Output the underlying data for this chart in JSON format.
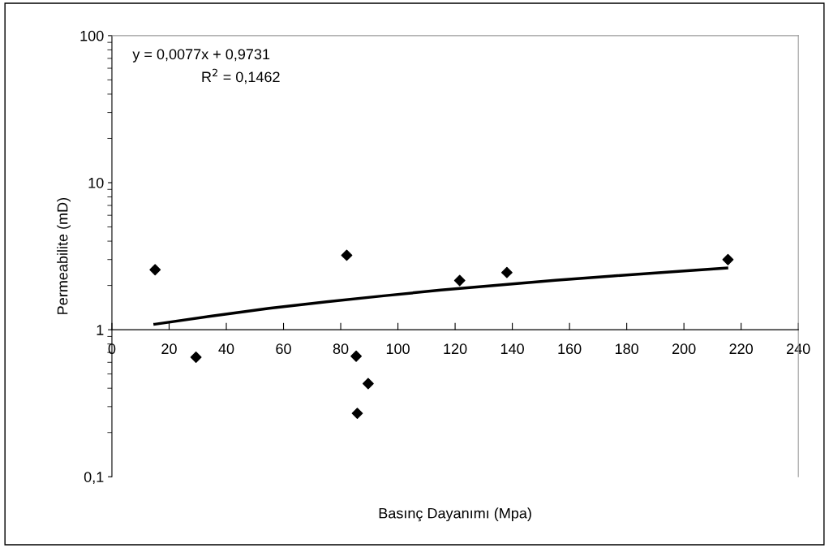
{
  "chart_data": {
    "type": "scatter",
    "xlabel": "Basınç Dayanımı (Mpa)",
    "ylabel": "Permeabilite (mD)",
    "log": "y",
    "grid": false,
    "legend": false,
    "xlim": [
      0,
      240
    ],
    "xticks": [
      0,
      20,
      40,
      60,
      80,
      100,
      120,
      140,
      160,
      180,
      200,
      220,
      240
    ],
    "ylim": [
      0.1,
      100
    ],
    "yticks": [
      {
        "value": 0.1,
        "label": "0,1"
      },
      1,
      10,
      100
    ],
    "series": [
      {
        "color": "#000000",
        "marker": "diamond",
        "x": [
          15.1,
          29.4,
          82.1,
          85.4,
          89.6,
          85.8,
          121.6,
          138.1,
          215.4
        ],
        "values": [
          2.56,
          0.65,
          3.21,
          0.66,
          0.43,
          0.27,
          2.16,
          2.45,
          3.0
        ]
      },
      {
        "type": "line",
        "color": "#000000",
        "line_style": "solid",
        "marker": "none",
        "x": [
          15,
          35,
          55,
          75,
          95,
          115,
          135,
          155,
          175,
          195,
          215
        ],
        "values": [
          1.09,
          1.24,
          1.4,
          1.55,
          1.7,
          1.86,
          2.01,
          2.17,
          2.32,
          2.47,
          2.63
        ]
      }
    ],
    "annotations": [
      "y = 0,0077x + 0,9731",
      "R$^{2}$ = 0,1462"
    ]
  }
}
